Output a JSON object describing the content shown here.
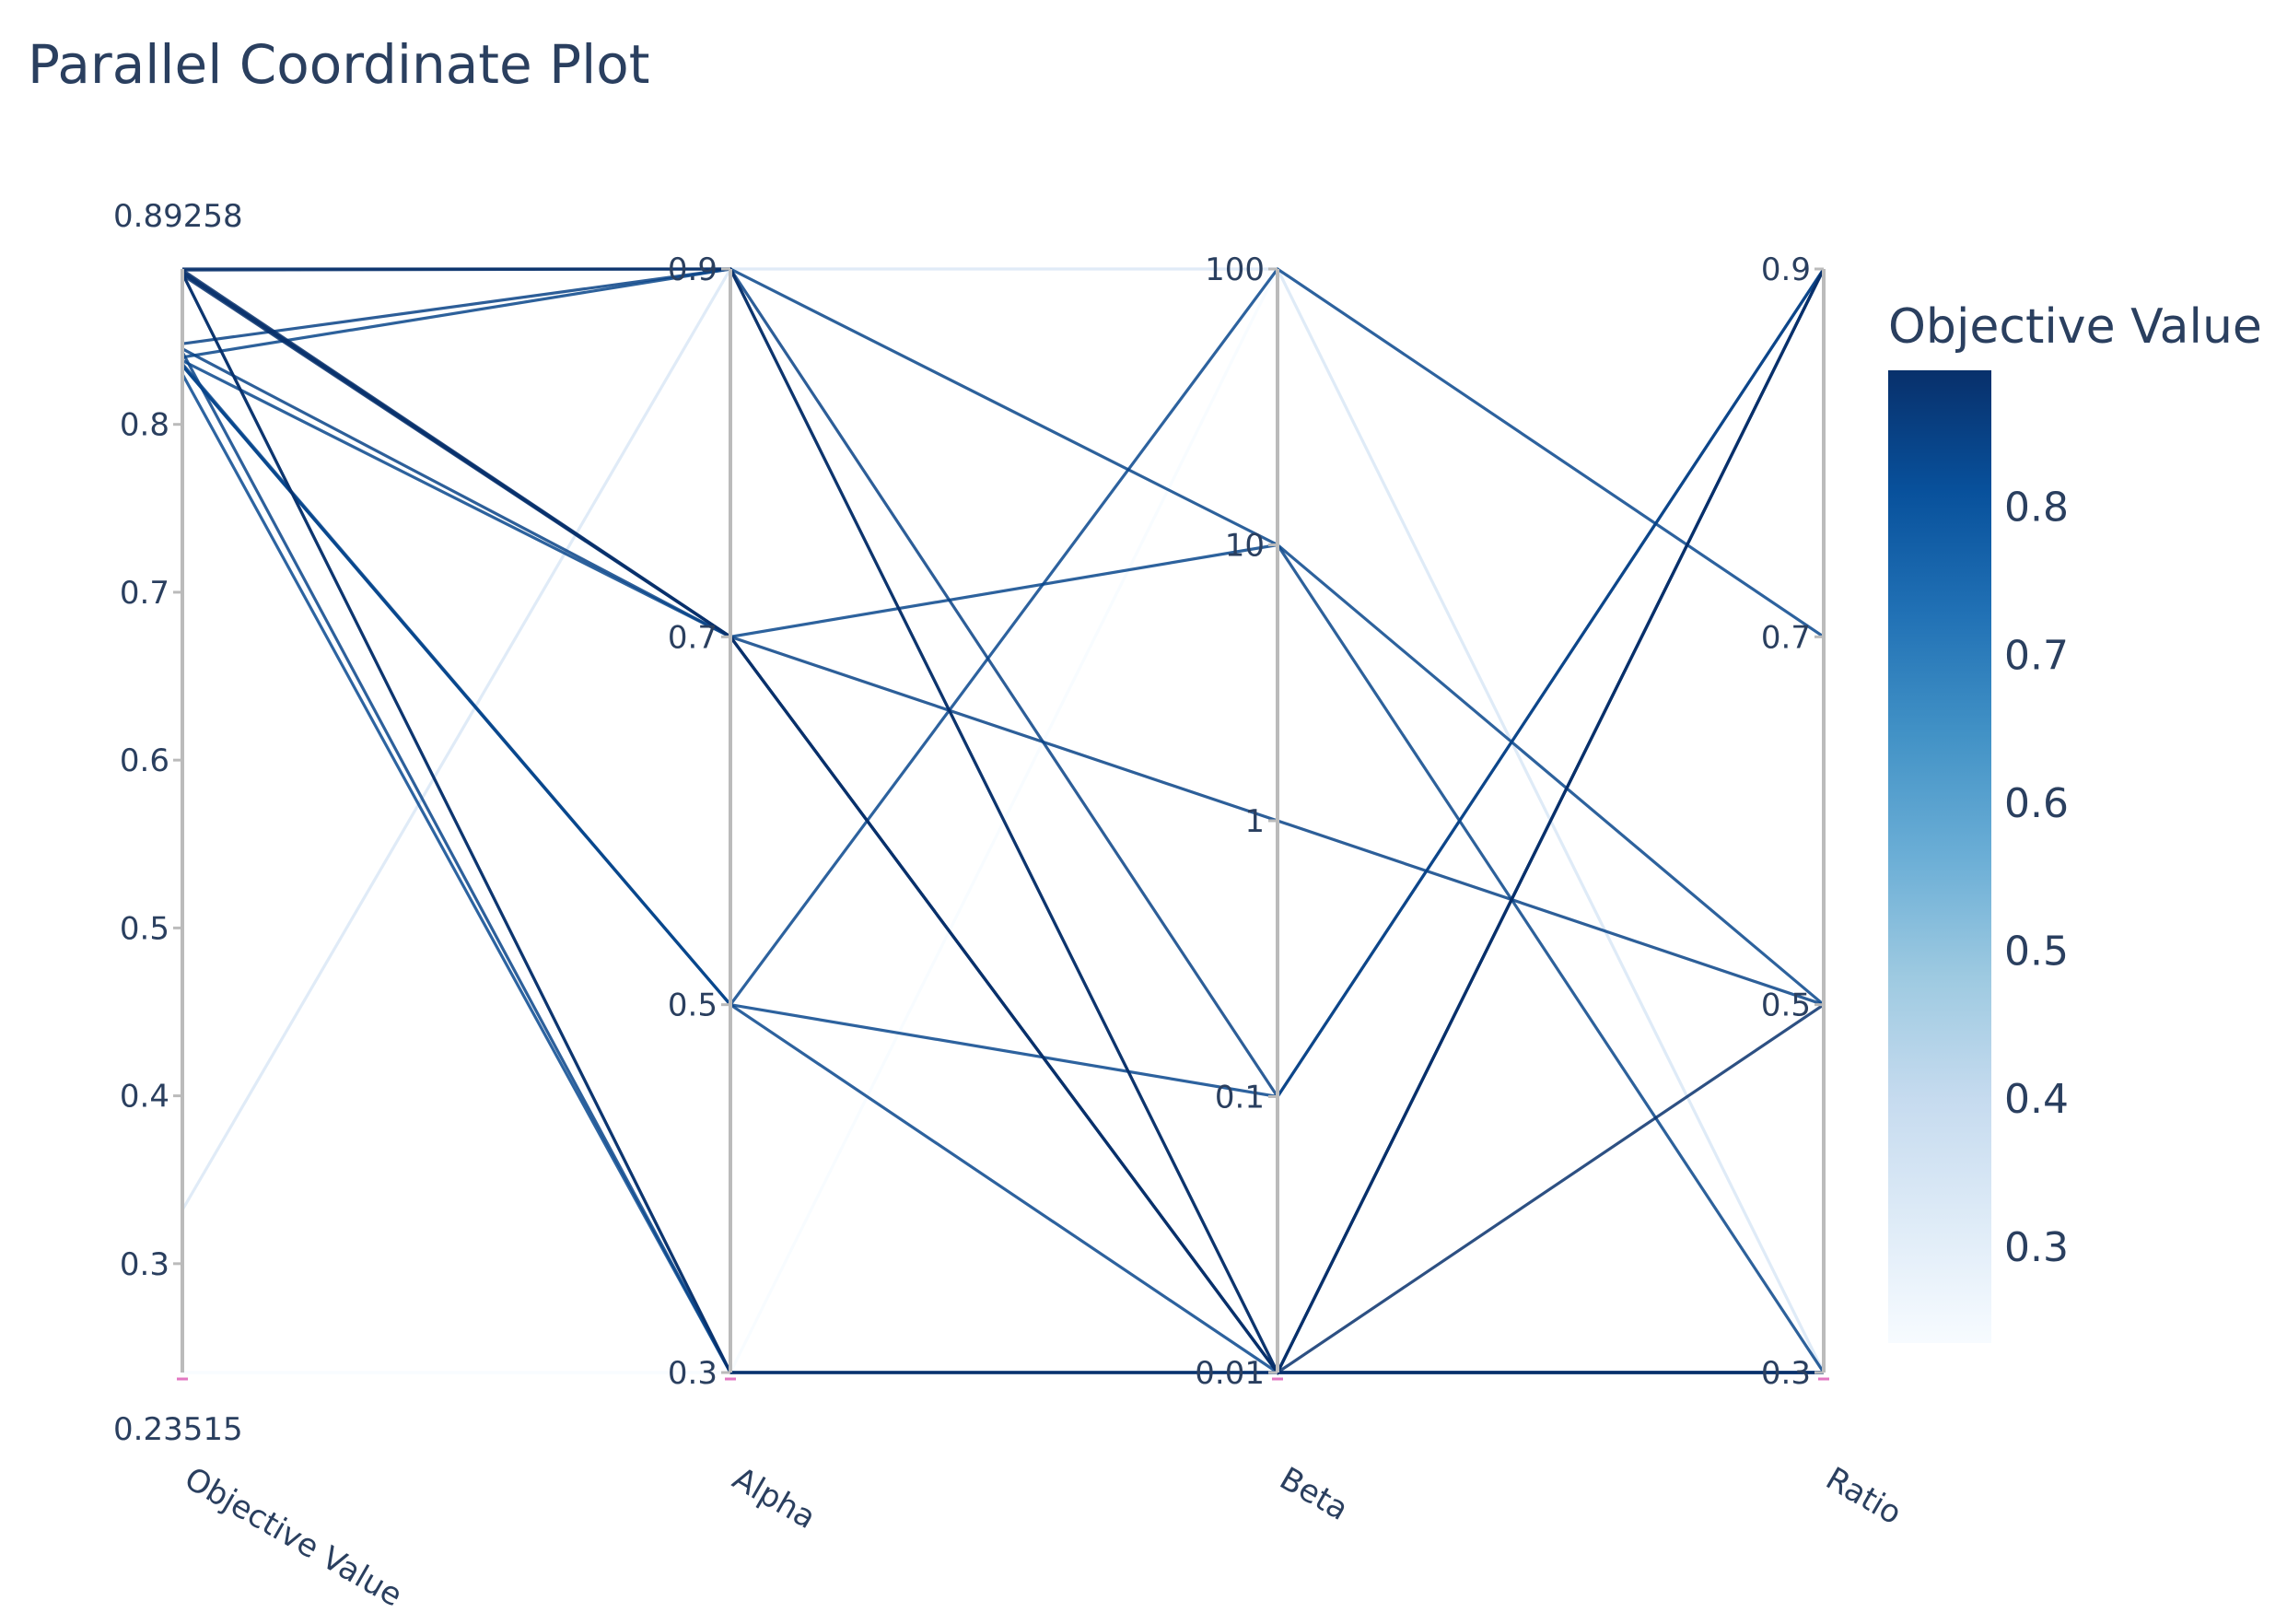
{
  "chart_data": {
    "type": "parallel_coordinates",
    "title": "Parallel Coordinate Plot",
    "axes": [
      {
        "label": "Objective Value",
        "scale": "linear",
        "range": [
          0.23515,
          0.89258
        ],
        "ticks": [
          "0.3",
          "0.4",
          "0.5",
          "0.6",
          "0.7",
          "0.8"
        ],
        "tick_values": [
          0.3,
          0.4,
          0.5,
          0.6,
          0.7,
          0.8
        ],
        "min_label": "0.23515",
        "max_label": "0.89258"
      },
      {
        "label": "Alpha",
        "scale": "linear",
        "range": [
          0.3,
          0.9
        ],
        "ticks": [
          "0.3",
          "0.5",
          "0.7",
          "0.9"
        ],
        "tick_values": [
          0.3,
          0.5,
          0.7,
          0.9
        ]
      },
      {
        "label": "Beta",
        "scale": "log",
        "range": [
          0.01,
          100
        ],
        "ticks": [
          "0.01",
          "0.1",
          "1",
          "10",
          "100"
        ],
        "tick_values": [
          0.01,
          0.1,
          1,
          10,
          100
        ]
      },
      {
        "label": "Ratio",
        "scale": "linear",
        "range": [
          0.3,
          0.9
        ],
        "ticks": [
          "0.3",
          "0.5",
          "0.7",
          "0.9"
        ],
        "tick_values": [
          0.3,
          0.5,
          0.7,
          0.9
        ]
      }
    ],
    "lines": [
      {
        "values": [
          0.89258,
          0.9,
          0.01,
          0.3
        ]
      },
      {
        "values": [
          0.892,
          0.9,
          0.01,
          0.3
        ]
      },
      {
        "values": [
          0.892,
          0.7,
          0.01,
          0.9
        ]
      },
      {
        "values": [
          0.891,
          0.7,
          0.01,
          0.3
        ]
      },
      {
        "values": [
          0.89,
          0.7,
          0.01,
          0.9
        ]
      },
      {
        "values": [
          0.89,
          0.3,
          0.01,
          0.9
        ]
      },
      {
        "values": [
          0.89,
          0.3,
          0.01,
          0.5
        ]
      },
      {
        "values": [
          0.889,
          0.7,
          0.01,
          0.3
        ]
      },
      {
        "values": [
          0.848,
          0.9,
          0.1,
          0.9
        ]
      },
      {
        "values": [
          0.845,
          0.7,
          1,
          0.5
        ]
      },
      {
        "values": [
          0.843,
          0.3,
          0.01,
          0.3
        ]
      },
      {
        "values": [
          0.84,
          0.9,
          10,
          0.3
        ]
      },
      {
        "values": [
          0.838,
          0.7,
          10,
          0.5
        ]
      },
      {
        "values": [
          0.836,
          0.5,
          0.1,
          0.9
        ]
      },
      {
        "values": [
          0.835,
          0.5,
          100,
          0.7
        ]
      },
      {
        "values": [
          0.835,
          0.5,
          0.01,
          0.9
        ]
      },
      {
        "values": [
          0.83,
          0.3,
          0.01,
          0.3
        ]
      },
      {
        "values": [
          0.332,
          0.9,
          100,
          0.3
        ]
      },
      {
        "values": [
          0.23515,
          0.3,
          100,
          0.3
        ]
      }
    ],
    "colorbar": {
      "title": "Objective Value",
      "ticks": [
        "0.3",
        "0.4",
        "0.5",
        "0.6",
        "0.7",
        "0.8"
      ],
      "tick_values": [
        0.3,
        0.4,
        0.5,
        0.6,
        0.7,
        0.8
      ],
      "range": [
        0.23515,
        0.89258
      ],
      "colorscale": [
        "#f7fbff",
        "#deebf7",
        "#c6dbef",
        "#9ecae1",
        "#6baed6",
        "#4292c6",
        "#2171b5",
        "#08519c",
        "#08306b"
      ]
    },
    "colors": {
      "text": "#2a3f5f",
      "axis": "#bbbbbb",
      "range_marker": "#e377c2"
    }
  }
}
